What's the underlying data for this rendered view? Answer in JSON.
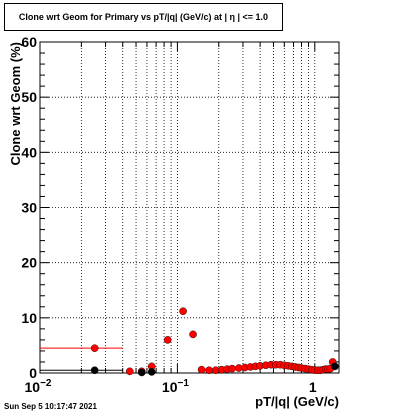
{
  "chart_data": {
    "type": "scatter",
    "title": "Clone wrt Geom for Primary vs pT/|q| (GeV/c) at | η | <= 1.0",
    "xlabel": "pT/|q| (GeV/c)",
    "ylabel": "Clone wrt Geom (%)",
    "xscale": "log",
    "xlim": [
      0.01,
      1.5
    ],
    "ylim": [
      0,
      60
    ],
    "x_ticks": [
      {
        "value": 0.01,
        "base": "10",
        "exp": "−2"
      },
      {
        "value": 0.1,
        "base": "10",
        "exp": "−1"
      },
      {
        "value": 1,
        "base": "1",
        "exp": ""
      }
    ],
    "y_ticks": [
      "0",
      "10",
      "20",
      "30",
      "40",
      "50",
      "60"
    ],
    "grid": true,
    "series": [
      {
        "color": "#ff0000",
        "marker": "circle",
        "points": [
          {
            "x": 0.025,
            "y": 4.5,
            "xlo": 0.01,
            "xhi": 0.04
          },
          {
            "x": 0.045,
            "y": 0.3
          },
          {
            "x": 0.055,
            "y": 0.3
          },
          {
            "x": 0.065,
            "y": 1.2
          },
          {
            "x": 0.085,
            "y": 6.0
          },
          {
            "x": 0.11,
            "y": 11.2
          },
          {
            "x": 0.13,
            "y": 7.0
          },
          {
            "x": 0.15,
            "y": 0.6
          },
          {
            "x": 0.17,
            "y": 0.5
          },
          {
            "x": 0.19,
            "y": 0.5
          },
          {
            "x": 0.21,
            "y": 0.6
          },
          {
            "x": 0.23,
            "y": 0.7
          },
          {
            "x": 0.25,
            "y": 0.8
          },
          {
            "x": 0.28,
            "y": 0.9
          },
          {
            "x": 0.31,
            "y": 1.0
          },
          {
            "x": 0.34,
            "y": 1.1
          },
          {
            "x": 0.37,
            "y": 1.2
          },
          {
            "x": 0.4,
            "y": 1.3
          },
          {
            "x": 0.44,
            "y": 1.4
          },
          {
            "x": 0.48,
            "y": 1.5
          },
          {
            "x": 0.52,
            "y": 1.5
          },
          {
            "x": 0.56,
            "y": 1.5
          },
          {
            "x": 0.6,
            "y": 1.4
          },
          {
            "x": 0.64,
            "y": 1.3
          },
          {
            "x": 0.68,
            "y": 1.2
          },
          {
            "x": 0.72,
            "y": 1.1
          },
          {
            "x": 0.76,
            "y": 1.0
          },
          {
            "x": 0.8,
            "y": 0.9
          },
          {
            "x": 0.85,
            "y": 0.8
          },
          {
            "x": 0.9,
            "y": 0.7
          },
          {
            "x": 0.95,
            "y": 0.6
          },
          {
            "x": 1.0,
            "y": 0.5
          },
          {
            "x": 1.05,
            "y": 0.5
          },
          {
            "x": 1.1,
            "y": 0.5
          },
          {
            "x": 1.15,
            "y": 0.6
          },
          {
            "x": 1.2,
            "y": 0.7
          },
          {
            "x": 1.25,
            "y": 0.7
          },
          {
            "x": 1.3,
            "y": 0.8
          },
          {
            "x": 1.35,
            "y": 2.0
          }
        ]
      },
      {
        "color": "#000000",
        "marker": "circle",
        "points": [
          {
            "x": 0.025,
            "y": 0.5,
            "xlo": 0.01,
            "xhi": 0.04
          },
          {
            "x": 0.055,
            "y": 0.1
          },
          {
            "x": 0.065,
            "y": 0.2
          },
          {
            "x": 1.4,
            "y": 1.2
          }
        ]
      }
    ]
  },
  "datestamp": "Sun Sep  5 10:17:47 2021"
}
